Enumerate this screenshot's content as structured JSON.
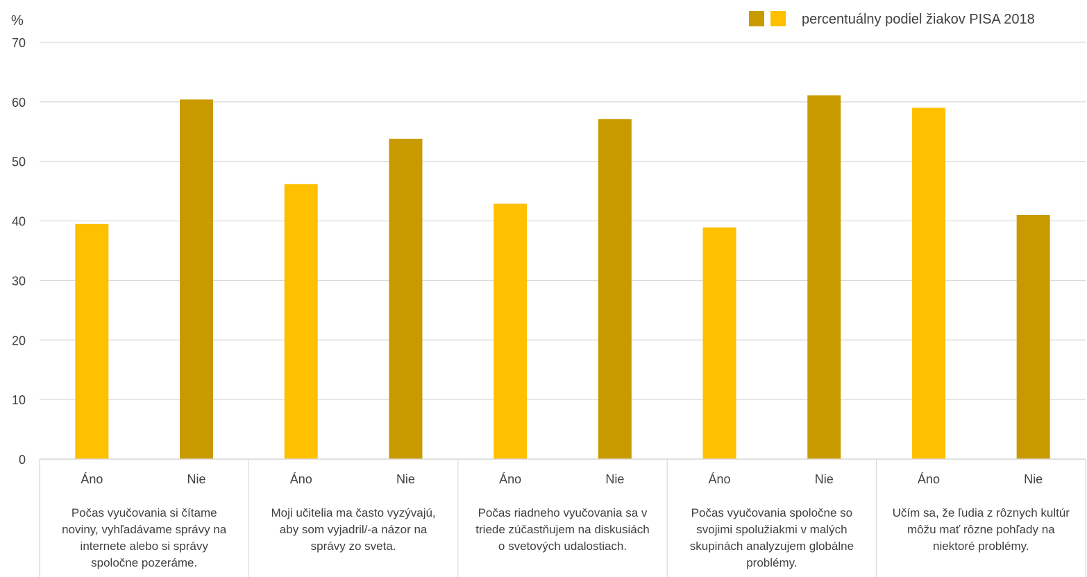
{
  "chart_data": {
    "type": "bar",
    "ylabel": "%",
    "ylim": [
      0,
      70
    ],
    "y_ticks": [
      "0",
      "10",
      "20",
      "30",
      "40",
      "50",
      "60",
      "70"
    ],
    "grid": true,
    "legend": {
      "label": "percentuálny podiel žiakov PISA 2018",
      "placement": "top-right",
      "swatch_colors": [
        "#C99A00",
        "#FFC000"
      ]
    },
    "groups": [
      {
        "label": "Počas vyučovania si čítame noviny, vyhľadávame správy na internete alebo si správy spoločne pozeráme.",
        "label_lines": [
          "Počas vyučovania si čítame",
          "noviny, vyhľadávame správy na",
          "internete alebo si správy",
          "spoločne pozeráme."
        ],
        "bars": [
          {
            "category": "Áno",
            "value": 39.5,
            "color": "#FFC000"
          },
          {
            "category": "Nie",
            "value": 60.4,
            "color": "#C99A00"
          }
        ]
      },
      {
        "label": "Moji učitelia ma často vyzývajú, aby som vyjadril/-a názor na správy zo sveta.",
        "label_lines": [
          "Moji učitelia ma často vyzývajú,",
          "aby som vyjadril/-a názor na",
          "správy zo sveta."
        ],
        "bars": [
          {
            "category": "Áno",
            "value": 46.2,
            "color": "#FFC000"
          },
          {
            "category": "Nie",
            "value": 53.8,
            "color": "#C99A00"
          }
        ]
      },
      {
        "label": "Počas riadneho vyučovania sa v triede zúčastňujem na diskusiách o svetových udalostiach.",
        "label_lines": [
          "Počas riadneho vyučovania sa v",
          "triede zúčastňujem na diskusiách",
          "o svetových udalostiach."
        ],
        "bars": [
          {
            "category": "Áno",
            "value": 42.9,
            "color": "#FFC000"
          },
          {
            "category": "Nie",
            "value": 57.1,
            "color": "#C99A00"
          }
        ]
      },
      {
        "label": "Počas vyučovania spoločne so svojimi spolužiakmi v malých skupinách analyzujem globálne problémy.",
        "label_lines": [
          "Počas vyučovania spoločne so",
          "svojimi spolužiakmi v malých",
          "skupinách analyzujem globálne",
          "problémy."
        ],
        "bars": [
          {
            "category": "Áno",
            "value": 38.9,
            "color": "#FFC000"
          },
          {
            "category": "Nie",
            "value": 61.1,
            "color": "#C99A00"
          }
        ]
      },
      {
        "label": "Učím sa, že ľudia z rôznych kultúr môžu mať rôzne pohľady na niektoré problémy.",
        "label_lines": [
          "Učím sa, že ľudia z rôznych kultúr",
          "môžu mať rôzne pohľady na",
          "niektoré problémy."
        ],
        "bars": [
          {
            "category": "Áno",
            "value": 59.0,
            "color": "#FFC000"
          },
          {
            "category": "Nie",
            "value": 41.0,
            "color": "#C99A00"
          }
        ]
      }
    ]
  },
  "colors": {
    "gridline": "#D9D9D9",
    "axis_text": "#404040"
  }
}
